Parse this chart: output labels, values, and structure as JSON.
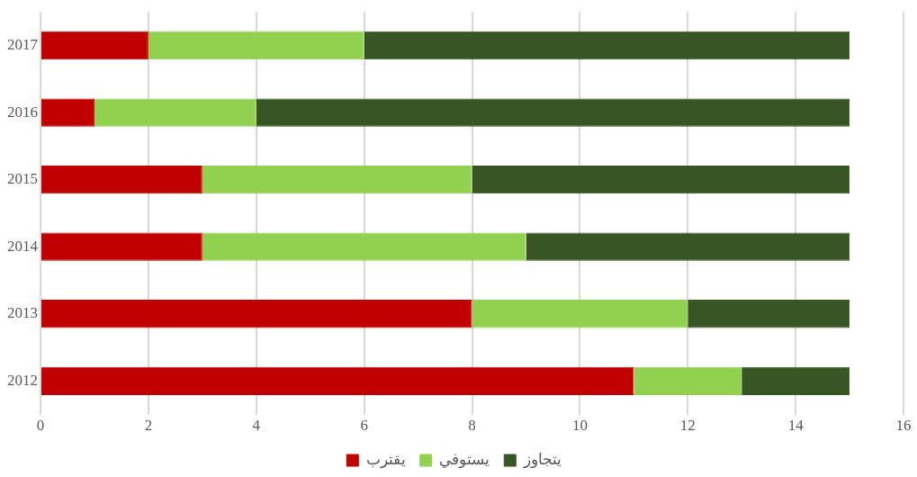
{
  "chart_data": {
    "type": "bar",
    "orientation": "horizontal",
    "stacked": true,
    "categories": [
      "2017",
      "2016",
      "2015",
      "2014",
      "2013",
      "2012"
    ],
    "series": [
      {
        "name": "يقترب",
        "color": "#c00000",
        "values": [
          2,
          1,
          3,
          3,
          8,
          11
        ]
      },
      {
        "name": "يستوفي",
        "color": "#92d050",
        "values": [
          4,
          3,
          5,
          6,
          4,
          2
        ]
      },
      {
        "name": "يتجاوز",
        "color": "#375623",
        "values": [
          9,
          11,
          7,
          6,
          3,
          2
        ]
      }
    ],
    "xlim": [
      0,
      16
    ],
    "xticks": [
      0,
      2,
      4,
      6,
      8,
      10,
      12,
      14,
      16
    ],
    "grid": "x",
    "legend": "bottom"
  }
}
